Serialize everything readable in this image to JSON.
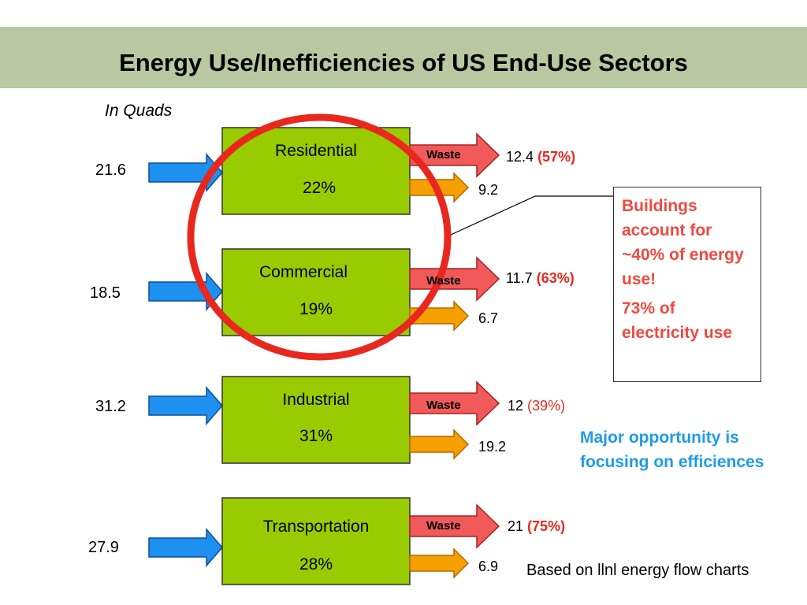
{
  "title": "Energy Use/Inefficiencies of US End-Use Sectors",
  "subtitle": "In Quads",
  "waste_label": "Waste",
  "sectors": [
    {
      "name": "Residential",
      "share": "22%",
      "input": "21.6",
      "waste_value": "12.4",
      "waste_pct": "(57%)",
      "useful": "9.2"
    },
    {
      "name": "Commercial",
      "share": "19%",
      "input": "18.5",
      "waste_value": "11.7",
      "waste_pct": "(63%)",
      "useful": "6.7"
    },
    {
      "name": "Industrial",
      "share": "31%",
      "input": "31.2",
      "waste_value": "12",
      "waste_pct": "(39%)",
      "useful": "19.2"
    },
    {
      "name": "Transportation",
      "share": "28%",
      "input": "27.9",
      "waste_value": "21",
      "waste_pct": "(75%)",
      "useful": "6.9"
    }
  ],
  "callout": {
    "line1": "Buildings account for ~40% of energy use!",
    "line2": "73% of electricity use"
  },
  "opportunity_note": "Major opportunity is focusing on efficiences",
  "source_note": "Based on llnl energy flow charts",
  "colors": {
    "title_band": "#b9c8a1",
    "sector_box": "#99cc00",
    "input_arrow": "#1e90f0",
    "waste_arrow": "#f05a5a",
    "useful_arrow": "#f5a000",
    "highlight_circle": "#e8281f",
    "callout_text": "#f0493f",
    "note_text": "#1f9be8"
  }
}
